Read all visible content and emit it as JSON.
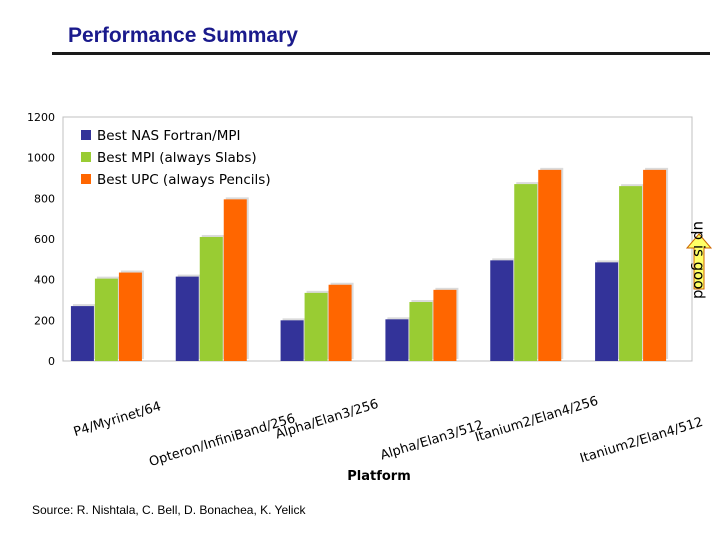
{
  "slide": {
    "title": "Performance Summary",
    "source": "Source:  R. Nishtala, C. Bell, D. Bonachea, K. Yelick",
    "up_note": "up is good"
  },
  "colors": {
    "title": "#1a1a8c",
    "series": [
      "#333399",
      "#99cc33",
      "#ff6600"
    ],
    "plot_border": "#c0c0c0",
    "arrow_fill": "#ffff66"
  },
  "chart_data": {
    "type": "bar",
    "xlabel": "Platform",
    "ylabel": "",
    "ylim": [
      0,
      1200
    ],
    "yticks": [
      0,
      200,
      400,
      600,
      800,
      1000,
      1200
    ],
    "grid": false,
    "legend_position": "top-left",
    "categories": [
      "P4/Myrinet/64",
      "Opteron/InfiniBand/256",
      "Alpha/Elan3/256",
      "Alpha/Elan3/512",
      "Itanium2/Elan4/256",
      "Itanium2/Elan4/512"
    ],
    "series": [
      {
        "name": "Best NAS Fortran/MPI",
        "values": [
          270,
          415,
          200,
          205,
          495,
          485
        ]
      },
      {
        "name": "Best MPI (always Slabs)",
        "values": [
          405,
          610,
          335,
          290,
          870,
          860
        ]
      },
      {
        "name": "Best UPC (always Pencils)",
        "values": [
          435,
          795,
          375,
          350,
          940,
          940
        ]
      }
    ]
  }
}
